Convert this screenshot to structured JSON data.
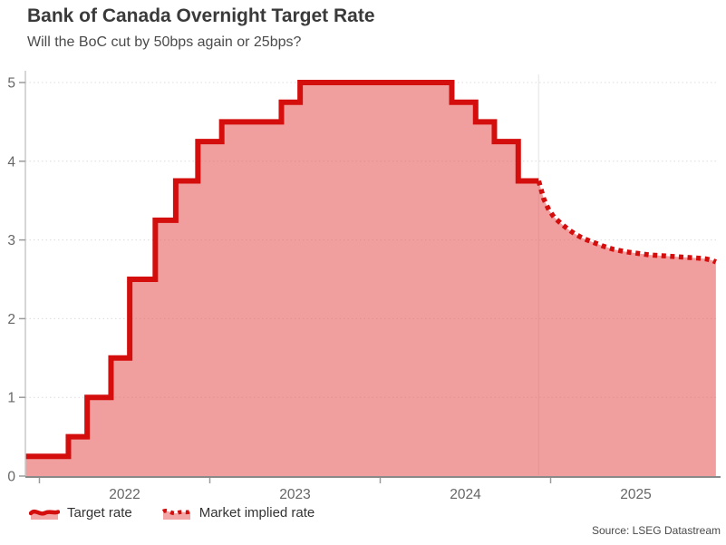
{
  "header": {
    "title": "Bank of Canada Overnight Target Rate",
    "subtitle": "Will the BoC cut by 50bps again or 25bps?"
  },
  "source": "Source: LSEG Datastream",
  "legend": [
    {
      "label": "Target rate",
      "style": "solid"
    },
    {
      "label": "Market implied rate",
      "style": "dotted"
    }
  ],
  "colors": {
    "line_red": "#d40d0d",
    "area_pink": "rgba(232,93,93,0.6)",
    "gridline": "#dcdcdc",
    "y_axis_line": "#c9c9c9",
    "x_axis_line": "#8a8a8a",
    "tick": "#9a9a9a",
    "tick_label": "#666666",
    "forecast_divider": "#ececec"
  },
  "chart_data": {
    "type": "area",
    "title": "Bank of Canada Overnight Target Rate",
    "subtitle": "Will the BoC cut by 50bps again or 25bps?",
    "xlabel": "",
    "ylabel": "",
    "xlim": [
      2021.92,
      2025.97
    ],
    "ylim": [
      0,
      5
    ],
    "x_ticks": [
      2022,
      2023,
      2024,
      2025
    ],
    "y_ticks": [
      0,
      1,
      2,
      3,
      4,
      5
    ],
    "grid": "dotted-horizontal",
    "legend_position": "bottom-left",
    "forecast_start": 2024.93,
    "series": [
      {
        "name": "Target rate",
        "style": "solid-step",
        "points": [
          [
            2021.92,
            0.25
          ],
          [
            2022.17,
            0.5
          ],
          [
            2022.28,
            1.0
          ],
          [
            2022.42,
            1.5
          ],
          [
            2022.53,
            2.5
          ],
          [
            2022.68,
            3.25
          ],
          [
            2022.8,
            3.75
          ],
          [
            2022.93,
            4.25
          ],
          [
            2023.07,
            4.5
          ],
          [
            2023.42,
            4.75
          ],
          [
            2023.53,
            5.0
          ],
          [
            2024.42,
            4.75
          ],
          [
            2024.56,
            4.5
          ],
          [
            2024.67,
            4.25
          ],
          [
            2024.81,
            3.75
          ]
        ]
      },
      {
        "name": "Market implied rate",
        "style": "dotted",
        "points": [
          [
            2024.93,
            3.75
          ],
          [
            2024.96,
            3.52
          ],
          [
            2024.99,
            3.38
          ],
          [
            2025.02,
            3.29
          ],
          [
            2025.06,
            3.21
          ],
          [
            2025.1,
            3.14
          ],
          [
            2025.14,
            3.08
          ],
          [
            2025.19,
            3.02
          ],
          [
            2025.25,
            2.97
          ],
          [
            2025.31,
            2.92
          ],
          [
            2025.37,
            2.88
          ],
          [
            2025.44,
            2.85
          ],
          [
            2025.51,
            2.83
          ],
          [
            2025.58,
            2.81
          ],
          [
            2025.65,
            2.8
          ],
          [
            2025.72,
            2.79
          ],
          [
            2025.79,
            2.78
          ],
          [
            2025.86,
            2.77
          ],
          [
            2025.91,
            2.76
          ],
          [
            2025.95,
            2.74
          ],
          [
            2025.97,
            2.72
          ]
        ]
      }
    ]
  }
}
